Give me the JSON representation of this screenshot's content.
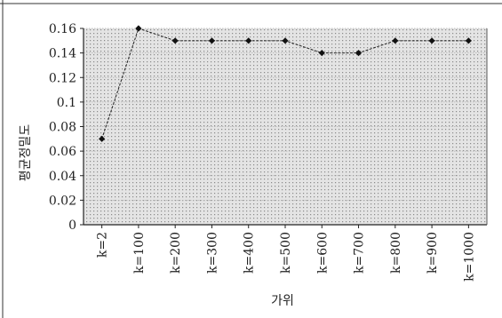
{
  "chart_data": {
    "type": "line",
    "title": "",
    "xlabel": "가위",
    "ylabel": "평균정밀도",
    "categories": [
      "k=2",
      "k=100",
      "k=200",
      "k=300",
      "k=400",
      "k=500",
      "k=600",
      "k=700",
      "k=800",
      "k=900",
      "k=1000"
    ],
    "series": [
      {
        "values": [
          0.07,
          0.16,
          0.15,
          0.15,
          0.15,
          0.15,
          0.14,
          0.14,
          0.15,
          0.15,
          0.15
        ]
      }
    ],
    "ylim": [
      0,
      0.16
    ],
    "yticks": [
      "0",
      "0.02",
      "0.04",
      "0.06",
      "0.08",
      "0.1",
      "0.12",
      "0.14",
      "0.16"
    ],
    "grid": true,
    "legend": "none",
    "colors": {
      "line": "#222222",
      "marker": "#111111",
      "plot_background": "#dcdcdc",
      "dots": "#8a8a8a"
    }
  }
}
